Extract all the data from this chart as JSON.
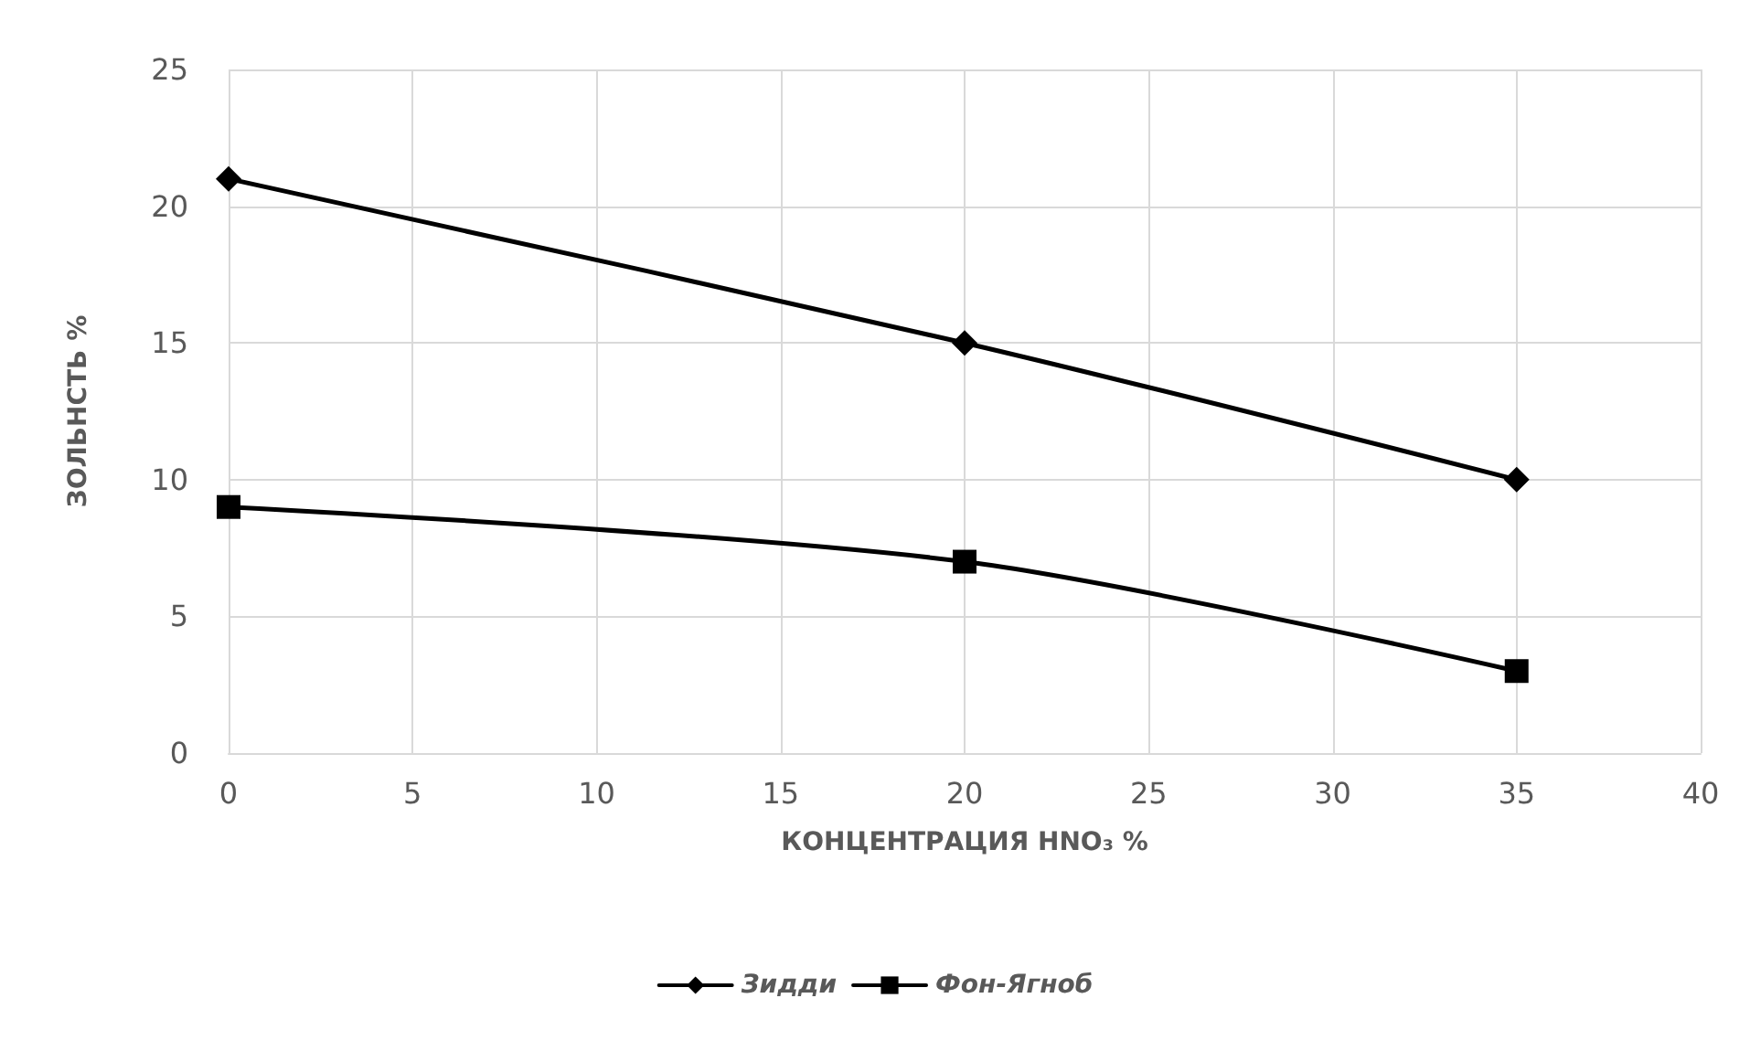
{
  "chart_data": {
    "type": "line",
    "xlabel": "КОНЦЕНТРАЦИЯ HNO₃ %",
    "ylabel": "ЗОЛЬНСТЬ %",
    "x": [
      0,
      20,
      35
    ],
    "series": [
      {
        "name": "Зидди",
        "color": "#000000",
        "marker": "diamond",
        "values": [
          21,
          15,
          10
        ]
      },
      {
        "name": "Фон-Ягноб",
        "color": "#000000",
        "marker": "square",
        "values": [
          9,
          7,
          3
        ]
      }
    ],
    "xlim": [
      0,
      40
    ],
    "xticks": [
      0,
      5,
      10,
      15,
      20,
      25,
      30,
      35,
      40
    ],
    "ylim": [
      0,
      25
    ],
    "yticks": [
      0,
      5,
      10,
      15,
      20,
      25
    ],
    "grid": true,
    "legend": "bottom",
    "line_style": "solid"
  }
}
